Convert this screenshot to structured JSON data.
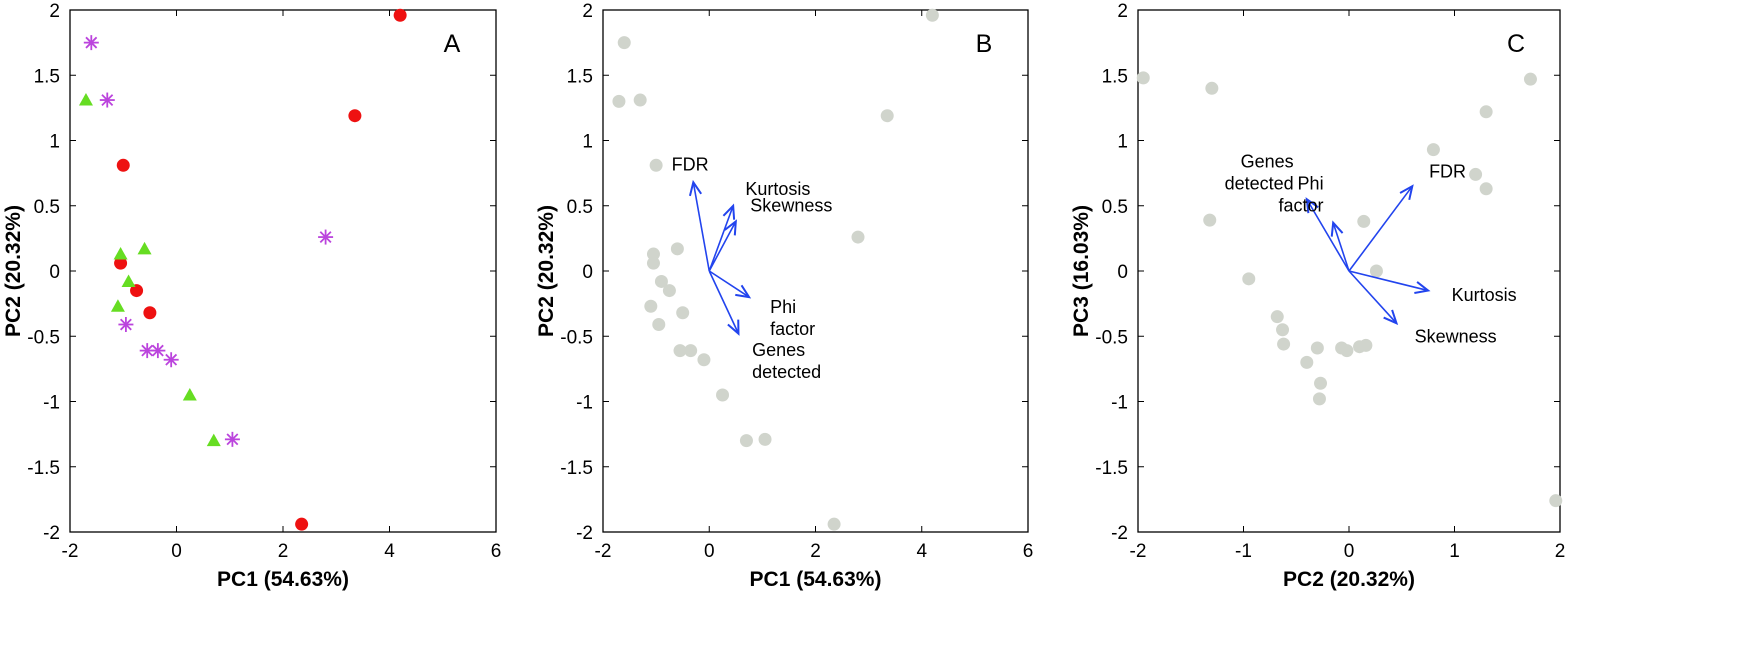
{
  "colors": {
    "circle": "#ee1111",
    "triangle": "#66dd22",
    "star": "#bb44dd",
    "grey_point": "#d0d4cc",
    "arrow": "#2244ee"
  },
  "chart_data": [
    {
      "type": "scatter",
      "panel_label": "A",
      "xlabel": "PC1 (54.63%)",
      "ylabel": "PC2 (20.32%)",
      "xlim": [
        -2,
        6
      ],
      "ylim": [
        -2,
        2
      ],
      "xticks": [
        "-2",
        "0",
        "2",
        "4",
        "6"
      ],
      "yticks": [
        "2",
        "1.5",
        "1",
        "0.5",
        "0",
        "-0.5",
        "-1",
        "-1.5",
        "-2"
      ],
      "series": [
        {
          "marker": "circle",
          "points": [
            [
              4.2,
              1.96
            ],
            [
              3.35,
              1.19
            ],
            [
              -1.0,
              0.81
            ],
            [
              -1.05,
              0.06
            ],
            [
              -0.75,
              -0.15
            ],
            [
              -0.5,
              -0.32
            ],
            [
              2.35,
              -1.94
            ]
          ]
        },
        {
          "marker": "triangle",
          "points": [
            [
              -1.7,
              1.31
            ],
            [
              -1.05,
              0.13
            ],
            [
              -0.6,
              0.17
            ],
            [
              -0.9,
              -0.08
            ],
            [
              -1.1,
              -0.27
            ],
            [
              0.25,
              -0.95
            ],
            [
              0.7,
              -1.3
            ]
          ]
        },
        {
          "marker": "star",
          "points": [
            [
              -1.6,
              1.75
            ],
            [
              -1.3,
              1.31
            ],
            [
              2.8,
              0.26
            ],
            [
              -0.95,
              -0.41
            ],
            [
              -0.55,
              -0.61
            ],
            [
              -0.35,
              -0.61
            ],
            [
              -0.1,
              -0.68
            ],
            [
              1.05,
              -1.29
            ]
          ]
        }
      ]
    },
    {
      "type": "scatter",
      "panel_label": "B",
      "xlabel": "PC1 (54.63%)",
      "ylabel": "PC2 (20.32%)",
      "xlim": [
        -2,
        6
      ],
      "ylim": [
        -2,
        2
      ],
      "xticks": [
        "-2",
        "0",
        "2",
        "4",
        "6"
      ],
      "yticks": [
        "2",
        "1.5",
        "1",
        "0.5",
        "0",
        "-0.5",
        "-1",
        "-1.5",
        "-2"
      ],
      "points": [
        [
          -1.7,
          1.3
        ],
        [
          -1.6,
          1.75
        ],
        [
          -1.3,
          1.31
        ],
        [
          -1.0,
          0.81
        ],
        [
          -1.05,
          0.13
        ],
        [
          -1.05,
          0.06
        ],
        [
          -0.6,
          0.17
        ],
        [
          -0.9,
          -0.08
        ],
        [
          -0.75,
          -0.15
        ],
        [
          -1.1,
          -0.27
        ],
        [
          -0.5,
          -0.32
        ],
        [
          -0.95,
          -0.41
        ],
        [
          -0.55,
          -0.61
        ],
        [
          -0.35,
          -0.61
        ],
        [
          -0.1,
          -0.68
        ],
        [
          0.25,
          -0.95
        ],
        [
          0.7,
          -1.3
        ],
        [
          1.05,
          -1.29
        ],
        [
          2.8,
          0.26
        ],
        [
          3.35,
          1.19
        ],
        [
          4.2,
          1.96
        ],
        [
          2.35,
          -1.94
        ]
      ],
      "biplot_vectors": [
        {
          "label": [
            "FDR"
          ],
          "x": -0.3,
          "y": 0.68
        },
        {
          "label": [
            "Kurtosis"
          ],
          "x": 0.45,
          "y": 0.5
        },
        {
          "label": [
            "Skewness"
          ],
          "x": 0.5,
          "y": 0.38
        },
        {
          "label": [
            "Phi",
            "factor"
          ],
          "x": 0.75,
          "y": -0.2
        },
        {
          "label": [
            "Genes",
            "detected"
          ],
          "x": 0.55,
          "y": -0.48
        }
      ],
      "origin": [
        0,
        0
      ]
    },
    {
      "type": "scatter",
      "panel_label": "C",
      "xlabel": "PC2 (20.32%)",
      "ylabel": "PC3 (16.03%)",
      "xlim": [
        -2,
        2
      ],
      "ylim": [
        -2,
        2
      ],
      "xticks": [
        "-2",
        "-1",
        "0",
        "1",
        "2"
      ],
      "yticks": [
        "2",
        "1.5",
        "1",
        "0.5",
        "0",
        "-0.5",
        "-1",
        "-1.5",
        "-2"
      ],
      "points": [
        [
          -1.95,
          1.48
        ],
        [
          -1.3,
          1.4
        ],
        [
          -1.32,
          0.39
        ],
        [
          -0.95,
          -0.06
        ],
        [
          -0.68,
          -0.35
        ],
        [
          -0.63,
          -0.45
        ],
        [
          -0.62,
          -0.56
        ],
        [
          -0.3,
          -0.59
        ],
        [
          -0.4,
          -0.7
        ],
        [
          -0.27,
          -0.86
        ],
        [
          -0.28,
          -0.98
        ],
        [
          -0.07,
          -0.59
        ],
        [
          -0.02,
          -0.61
        ],
        [
          0.1,
          -0.58
        ],
        [
          0.16,
          -0.57
        ],
        [
          0.14,
          0.38
        ],
        [
          0.26,
          0.0
        ],
        [
          0.8,
          0.93
        ],
        [
          1.2,
          0.74
        ],
        [
          1.3,
          0.63
        ],
        [
          1.3,
          1.22
        ],
        [
          1.72,
          1.47
        ],
        [
          1.96,
          -1.76
        ]
      ],
      "biplot_vectors": [
        {
          "label": [
            "Genes",
            "detected"
          ],
          "x": -0.4,
          "y": 0.55
        },
        {
          "label": [
            "Phi",
            "factor"
          ],
          "x": -0.15,
          "y": 0.37
        },
        {
          "label": [
            "FDR"
          ],
          "x": 0.6,
          "y": 0.65
        },
        {
          "label": [
            "Kurtosis"
          ],
          "x": 0.75,
          "y": -0.15
        },
        {
          "label": [
            "Skewness"
          ],
          "x": 0.45,
          "y": -0.4
        }
      ],
      "origin": [
        0,
        0
      ]
    }
  ]
}
